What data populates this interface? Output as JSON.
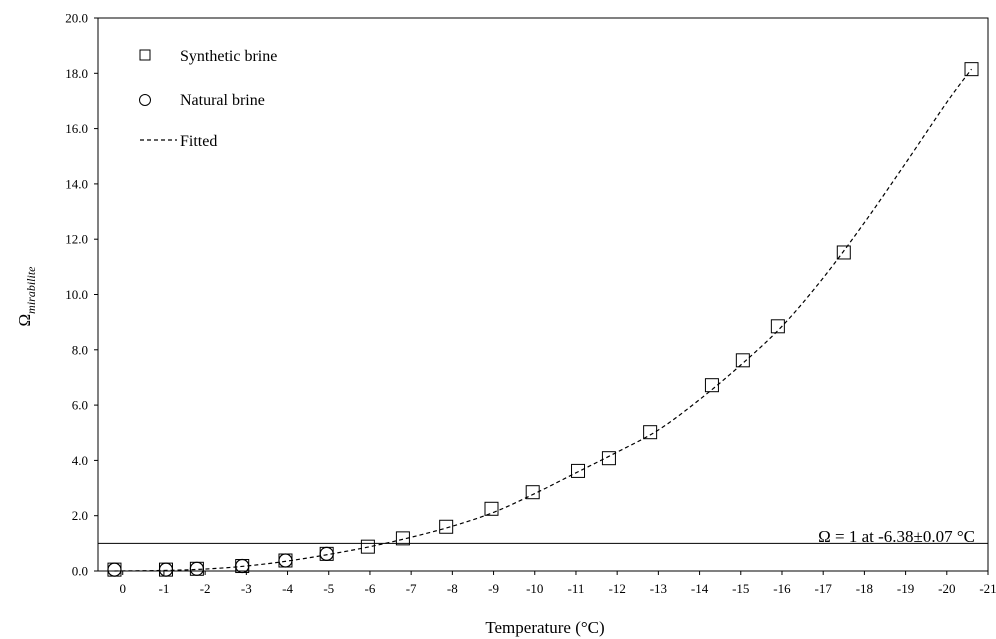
{
  "chart_data": {
    "type": "scatter",
    "xlabel": "Temperature (°C)",
    "ylabel_main": "Ω",
    "ylabel_sub": "mirabilite",
    "xlim": [
      0.6,
      -21
    ],
    "ylim": [
      0,
      20
    ],
    "x_ticks": [
      0,
      -1,
      -2,
      -3,
      -4,
      -5,
      -6,
      -7,
      -8,
      -9,
      -10,
      -11,
      -12,
      -13,
      -14,
      -15,
      -16,
      -17,
      -18,
      -19,
      -20,
      -21
    ],
    "x_tick_labels": [
      "0",
      "-1",
      "-2",
      "-3",
      "-4",
      "-5",
      "-6",
      "-7",
      "-8",
      "-9",
      "-10",
      "-11",
      "-12",
      "-13",
      "-14",
      "-15",
      "-16",
      "-17",
      "-18",
      "-19",
      "-20",
      "-21"
    ],
    "y_ticks": [
      0,
      2,
      4,
      6,
      8,
      10,
      12,
      14,
      16,
      18,
      20
    ],
    "y_tick_labels": [
      "0.0",
      "2.0",
      "4.0",
      "6.0",
      "8.0",
      "10.0",
      "12.0",
      "14.0",
      "16.0",
      "18.0",
      "20.0"
    ],
    "reference_line_y": 1,
    "annotation": "Ω = 1 at -6.38±0.07 °C",
    "legend": {
      "placement": "top-left",
      "entries": [
        {
          "label": "Synthetic brine",
          "marker": "square"
        },
        {
          "label": "Natural brine",
          "marker": "circle"
        },
        {
          "label": "Fitted",
          "marker": "dashed-line"
        }
      ]
    },
    "series": [
      {
        "name": "Synthetic brine",
        "marker": "square",
        "x": [
          0.2,
          -1.05,
          -1.8,
          -2.9,
          -3.95,
          -4.95,
          -5.95,
          -6.8,
          -7.85,
          -8.95,
          -9.95,
          -11.05,
          -11.8,
          -12.8,
          -14.3,
          -15.05,
          -15.9,
          -17.5,
          -20.6
        ],
        "y": [
          0.05,
          0.05,
          0.08,
          0.18,
          0.38,
          0.62,
          0.88,
          1.18,
          1.6,
          2.25,
          2.85,
          3.62,
          4.08,
          5.02,
          6.72,
          7.62,
          8.85,
          11.52,
          18.15
        ]
      },
      {
        "name": "Natural brine",
        "marker": "circle",
        "x": [
          0.2,
          -1.05,
          -1.8,
          -2.9,
          -3.95,
          -4.95
        ],
        "y": [
          0.05,
          0.05,
          0.08,
          0.18,
          0.38,
          0.62
        ]
      },
      {
        "name": "Fitted",
        "marker": "dashed-line",
        "x": [
          0.2,
          -1,
          -2,
          -3,
          -4,
          -5,
          -6,
          -7,
          -8,
          -9,
          -10,
          -11,
          -12,
          -13,
          -14,
          -15,
          -16,
          -17,
          -18,
          -19,
          -20,
          -20.6
        ],
        "y": [
          0.0,
          0.02,
          0.07,
          0.18,
          0.36,
          0.6,
          0.88,
          1.22,
          1.62,
          2.12,
          2.8,
          3.55,
          4.3,
          5.1,
          6.2,
          7.45,
          8.85,
          10.6,
          12.6,
          14.75,
          16.95,
          18.15
        ]
      }
    ]
  }
}
